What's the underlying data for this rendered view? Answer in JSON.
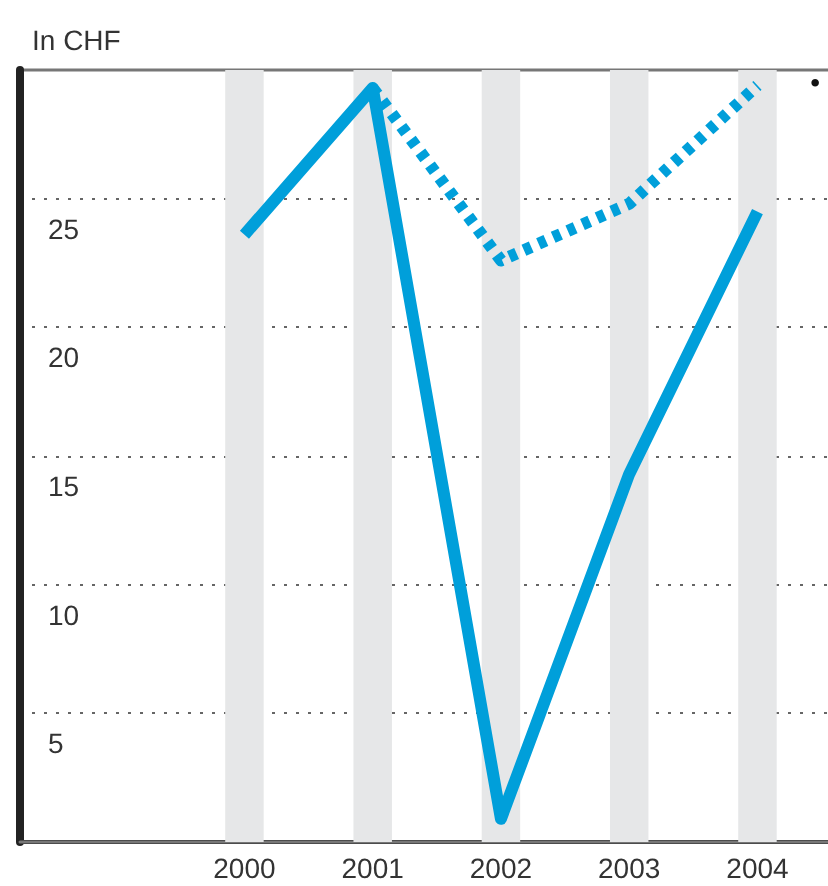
{
  "chart_data": {
    "type": "line",
    "ylabel": "In CHF",
    "x": [
      2000,
      2001,
      2002,
      2003,
      2004
    ],
    "xlim": [
      1998.25,
      2004.55
    ],
    "xticks": [
      2000,
      2001,
      2002,
      2003,
      2004
    ],
    "ylim": [
      0,
      30
    ],
    "yticks": [
      5,
      10,
      15,
      20,
      25
    ],
    "series": [
      {
        "color": "#009fda",
        "line_style": "solid",
        "values": [
          23.6,
          29.3,
          0.9,
          14.3,
          24.5
        ]
      },
      {
        "color": "#009fda",
        "line_style": "dotted",
        "values": [
          null,
          29.3,
          22.6,
          24.8,
          29.4
        ]
      }
    ],
    "bands": [
      {
        "axis": "x",
        "from": 1999.85,
        "to": 2000.15,
        "color": "#e6e7e8"
      },
      {
        "axis": "x",
        "from": 2000.85,
        "to": 2001.15,
        "color": "#e6e7e8"
      },
      {
        "axis": "x",
        "from": 2001.85,
        "to": 2002.15,
        "color": "#e6e7e8"
      },
      {
        "axis": "x",
        "from": 2002.85,
        "to": 2003.15,
        "color": "#e6e7e8"
      },
      {
        "axis": "x",
        "from": 2003.85,
        "to": 2004.15,
        "color": "#e6e7e8"
      }
    ],
    "annotations": [
      "•"
    ],
    "grid": "y",
    "marker": "none"
  }
}
